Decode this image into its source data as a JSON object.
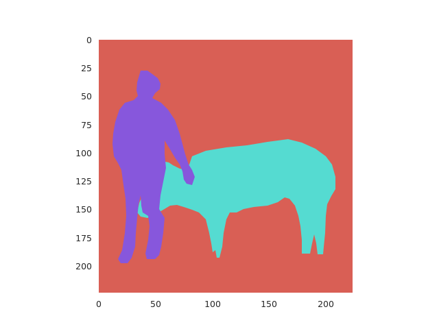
{
  "image": {
    "kind": "segmentation mask plot",
    "background_class_color": "#d95f55",
    "classes": [
      {
        "id": "person",
        "color": "#8757dc"
      },
      {
        "id": "cow",
        "color": "#55dbd1"
      }
    ]
  },
  "axes": {
    "x_ticks": [
      "0",
      "50",
      "100",
      "150",
      "200"
    ],
    "y_ticks": [
      "0",
      "25",
      "50",
      "75",
      "100",
      "125",
      "150",
      "175",
      "200"
    ],
    "x_range": [
      0,
      224
    ],
    "y_range": [
      0,
      224
    ],
    "grid": false
  }
}
